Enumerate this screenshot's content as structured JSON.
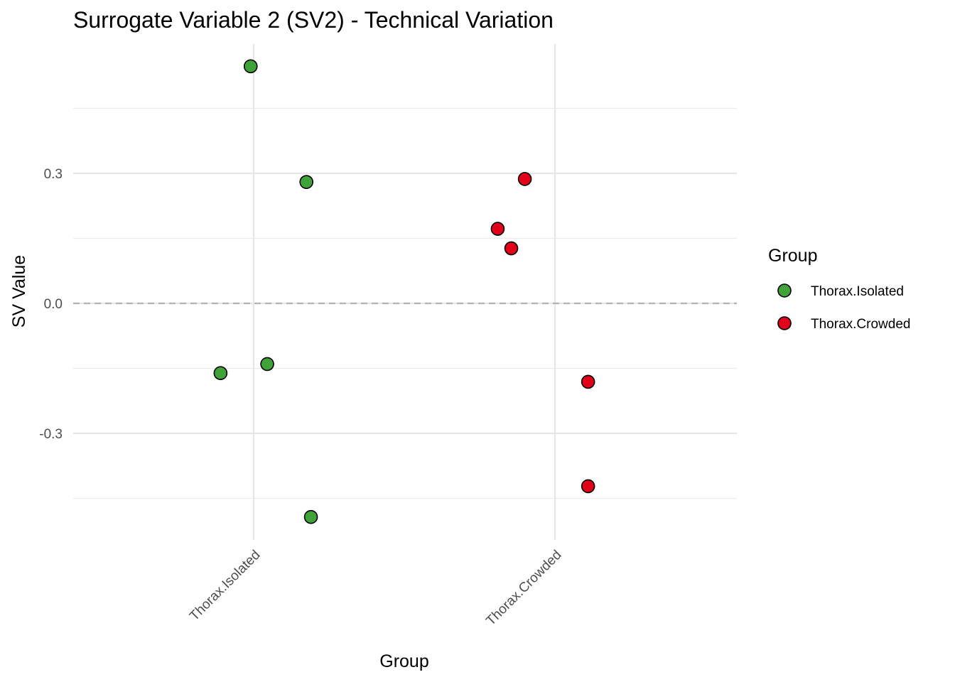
{
  "chart_data": {
    "type": "scatter",
    "title": "Surrogate Variable 2 (SV2) - Technical Variation",
    "xlabel": "Group",
    "ylabel": "SV Value",
    "categories": [
      "Thorax.Isolated",
      "Thorax.Crowded"
    ],
    "y_ticks": [
      -0.3,
      0.0,
      0.3
    ],
    "y_tick_labels": [
      "-0.3",
      "0.0",
      "0.3"
    ],
    "ylim": [
      -0.54,
      0.6
    ],
    "reference_line": 0.0,
    "grid": true,
    "legend": {
      "title": "Group",
      "placement": "right",
      "entries": [
        "Thorax.Isolated",
        "Thorax.Crowded"
      ]
    },
    "colors": {
      "Thorax.Isolated": "#3fa33a",
      "Thorax.Crowded": "#e0001a"
    },
    "series": [
      {
        "name": "Thorax.Isolated",
        "points": [
          {
            "x_jitter": -0.01,
            "y": 0.547
          },
          {
            "x_jitter": 0.175,
            "y": 0.28
          },
          {
            "x_jitter": 0.045,
            "y": -0.14
          },
          {
            "x_jitter": -0.11,
            "y": -0.161
          },
          {
            "x_jitter": 0.19,
            "y": -0.493
          }
        ]
      },
      {
        "name": "Thorax.Crowded",
        "points": [
          {
            "x_jitter": -0.1,
            "y": 0.287
          },
          {
            "x_jitter": -0.19,
            "y": 0.172
          },
          {
            "x_jitter": -0.145,
            "y": 0.127
          },
          {
            "x_jitter": 0.11,
            "y": -0.181
          },
          {
            "x_jitter": 0.11,
            "y": -0.422
          }
        ]
      }
    ]
  }
}
